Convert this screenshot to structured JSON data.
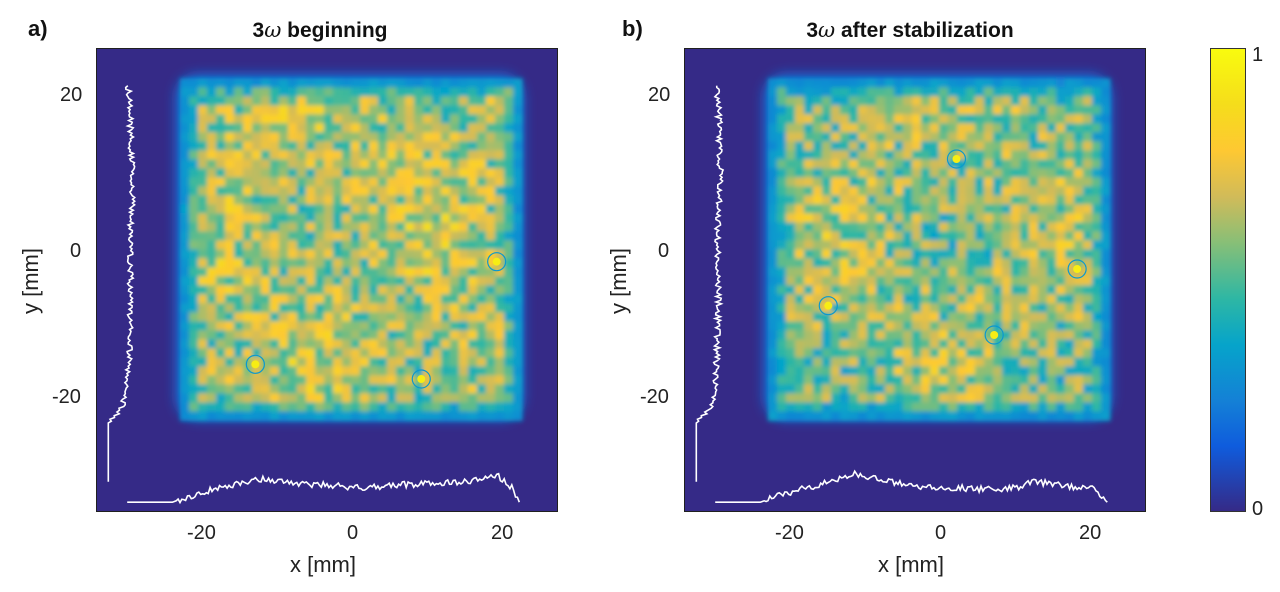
{
  "panels": [
    {
      "letter": "a)",
      "title_prefix": "3",
      "title_omega": "ω",
      "title_suffix": " beginning",
      "xlabel": "x [mm]",
      "ylabel": "y [mm]",
      "xticks": [
        "-20",
        "0",
        "20"
      ],
      "yticks": [
        "20",
        "0",
        "-20"
      ]
    },
    {
      "letter": "b)",
      "title_prefix": "3",
      "title_omega": "ω",
      "title_suffix": " after stabilization",
      "xlabel": "x [mm]",
      "ylabel": "y [mm]",
      "xticks": [
        "-20",
        "0",
        "20"
      ],
      "yticks": [
        "20",
        "0",
        "-20"
      ]
    }
  ],
  "colorbar": {
    "max_label": "1",
    "min_label": "0",
    "colormap": "parula"
  },
  "colors": {
    "background": "#352a87",
    "profile_line": "#ffffff"
  },
  "chart_data": [
    {
      "type": "heatmap",
      "title": "3ω beginning",
      "xlabel": "x [mm]",
      "ylabel": "y [mm]",
      "xlim": [
        -34,
        27
      ],
      "ylim": [
        -36,
        27
      ],
      "xticks": [
        -20,
        0,
        20
      ],
      "yticks": [
        -20,
        0,
        20
      ],
      "beam_extent_x": [
        -23,
        22
      ],
      "beam_extent_y": [
        -23,
        23
      ],
      "value_range": [
        0,
        1
      ],
      "mean_level": 0.62,
      "bright_spots": [
        {
          "x": 19,
          "y": -2
        },
        {
          "x": 9,
          "y": -18
        },
        {
          "x": -13,
          "y": -16
        }
      ],
      "x_profile": [
        [
          -30,
          0.0
        ],
        [
          -24,
          0.0
        ],
        [
          -22,
          0.15
        ],
        [
          -18,
          0.4
        ],
        [
          -14,
          0.55
        ],
        [
          -12,
          0.65
        ],
        [
          -10,
          0.6
        ],
        [
          -6,
          0.5
        ],
        [
          -2,
          0.45
        ],
        [
          0,
          0.4
        ],
        [
          4,
          0.45
        ],
        [
          8,
          0.5
        ],
        [
          12,
          0.55
        ],
        [
          16,
          0.6
        ],
        [
          19,
          0.75
        ],
        [
          21,
          0.4
        ],
        [
          22,
          0.0
        ]
      ],
      "y_profile": [
        [
          -32,
          0.0
        ],
        [
          -24,
          0.0
        ],
        [
          -22,
          0.45
        ],
        [
          -18,
          0.65
        ],
        [
          -14,
          0.7
        ],
        [
          -10,
          0.72
        ],
        [
          -6,
          0.75
        ],
        [
          -2,
          0.72
        ],
        [
          2,
          0.75
        ],
        [
          6,
          0.78
        ],
        [
          10,
          0.8
        ],
        [
          14,
          0.75
        ],
        [
          18,
          0.72
        ],
        [
          21,
          0.7
        ],
        [
          22,
          0.65
        ]
      ]
    },
    {
      "type": "heatmap",
      "title": "3ω after stabilization",
      "xlabel": "x [mm]",
      "ylabel": "y [mm]",
      "xlim": [
        -34,
        27
      ],
      "ylim": [
        -36,
        27
      ],
      "xticks": [
        -20,
        0,
        20
      ],
      "yticks": [
        -20,
        0,
        20
      ],
      "beam_extent_x": [
        -23,
        22
      ],
      "beam_extent_y": [
        -23,
        23
      ],
      "value_range": [
        0,
        1
      ],
      "mean_level": 0.58,
      "bright_spots": [
        {
          "x": -15,
          "y": -8
        },
        {
          "x": 7,
          "y": -12
        },
        {
          "x": 18,
          "y": -3
        },
        {
          "x": 2,
          "y": 12
        }
      ],
      "x_profile": [
        [
          -30,
          0.0
        ],
        [
          -24,
          0.0
        ],
        [
          -22,
          0.15
        ],
        [
          -18,
          0.4
        ],
        [
          -14,
          0.6
        ],
        [
          -12,
          0.8
        ],
        [
          -10,
          0.7
        ],
        [
          -6,
          0.55
        ],
        [
          -2,
          0.4
        ],
        [
          2,
          0.4
        ],
        [
          6,
          0.35
        ],
        [
          10,
          0.4
        ],
        [
          12,
          0.6
        ],
        [
          16,
          0.45
        ],
        [
          20,
          0.4
        ],
        [
          22,
          0.0
        ]
      ],
      "y_profile": [
        [
          -32,
          0.0
        ],
        [
          -24,
          0.0
        ],
        [
          -22,
          0.5
        ],
        [
          -18,
          0.65
        ],
        [
          -14,
          0.7
        ],
        [
          -10,
          0.72
        ],
        [
          -6,
          0.75
        ],
        [
          -2,
          0.7
        ],
        [
          2,
          0.72
        ],
        [
          6,
          0.75
        ],
        [
          10,
          0.8
        ],
        [
          14,
          0.78
        ],
        [
          18,
          0.75
        ],
        [
          21,
          0.7
        ],
        [
          22,
          0.68
        ]
      ]
    }
  ]
}
